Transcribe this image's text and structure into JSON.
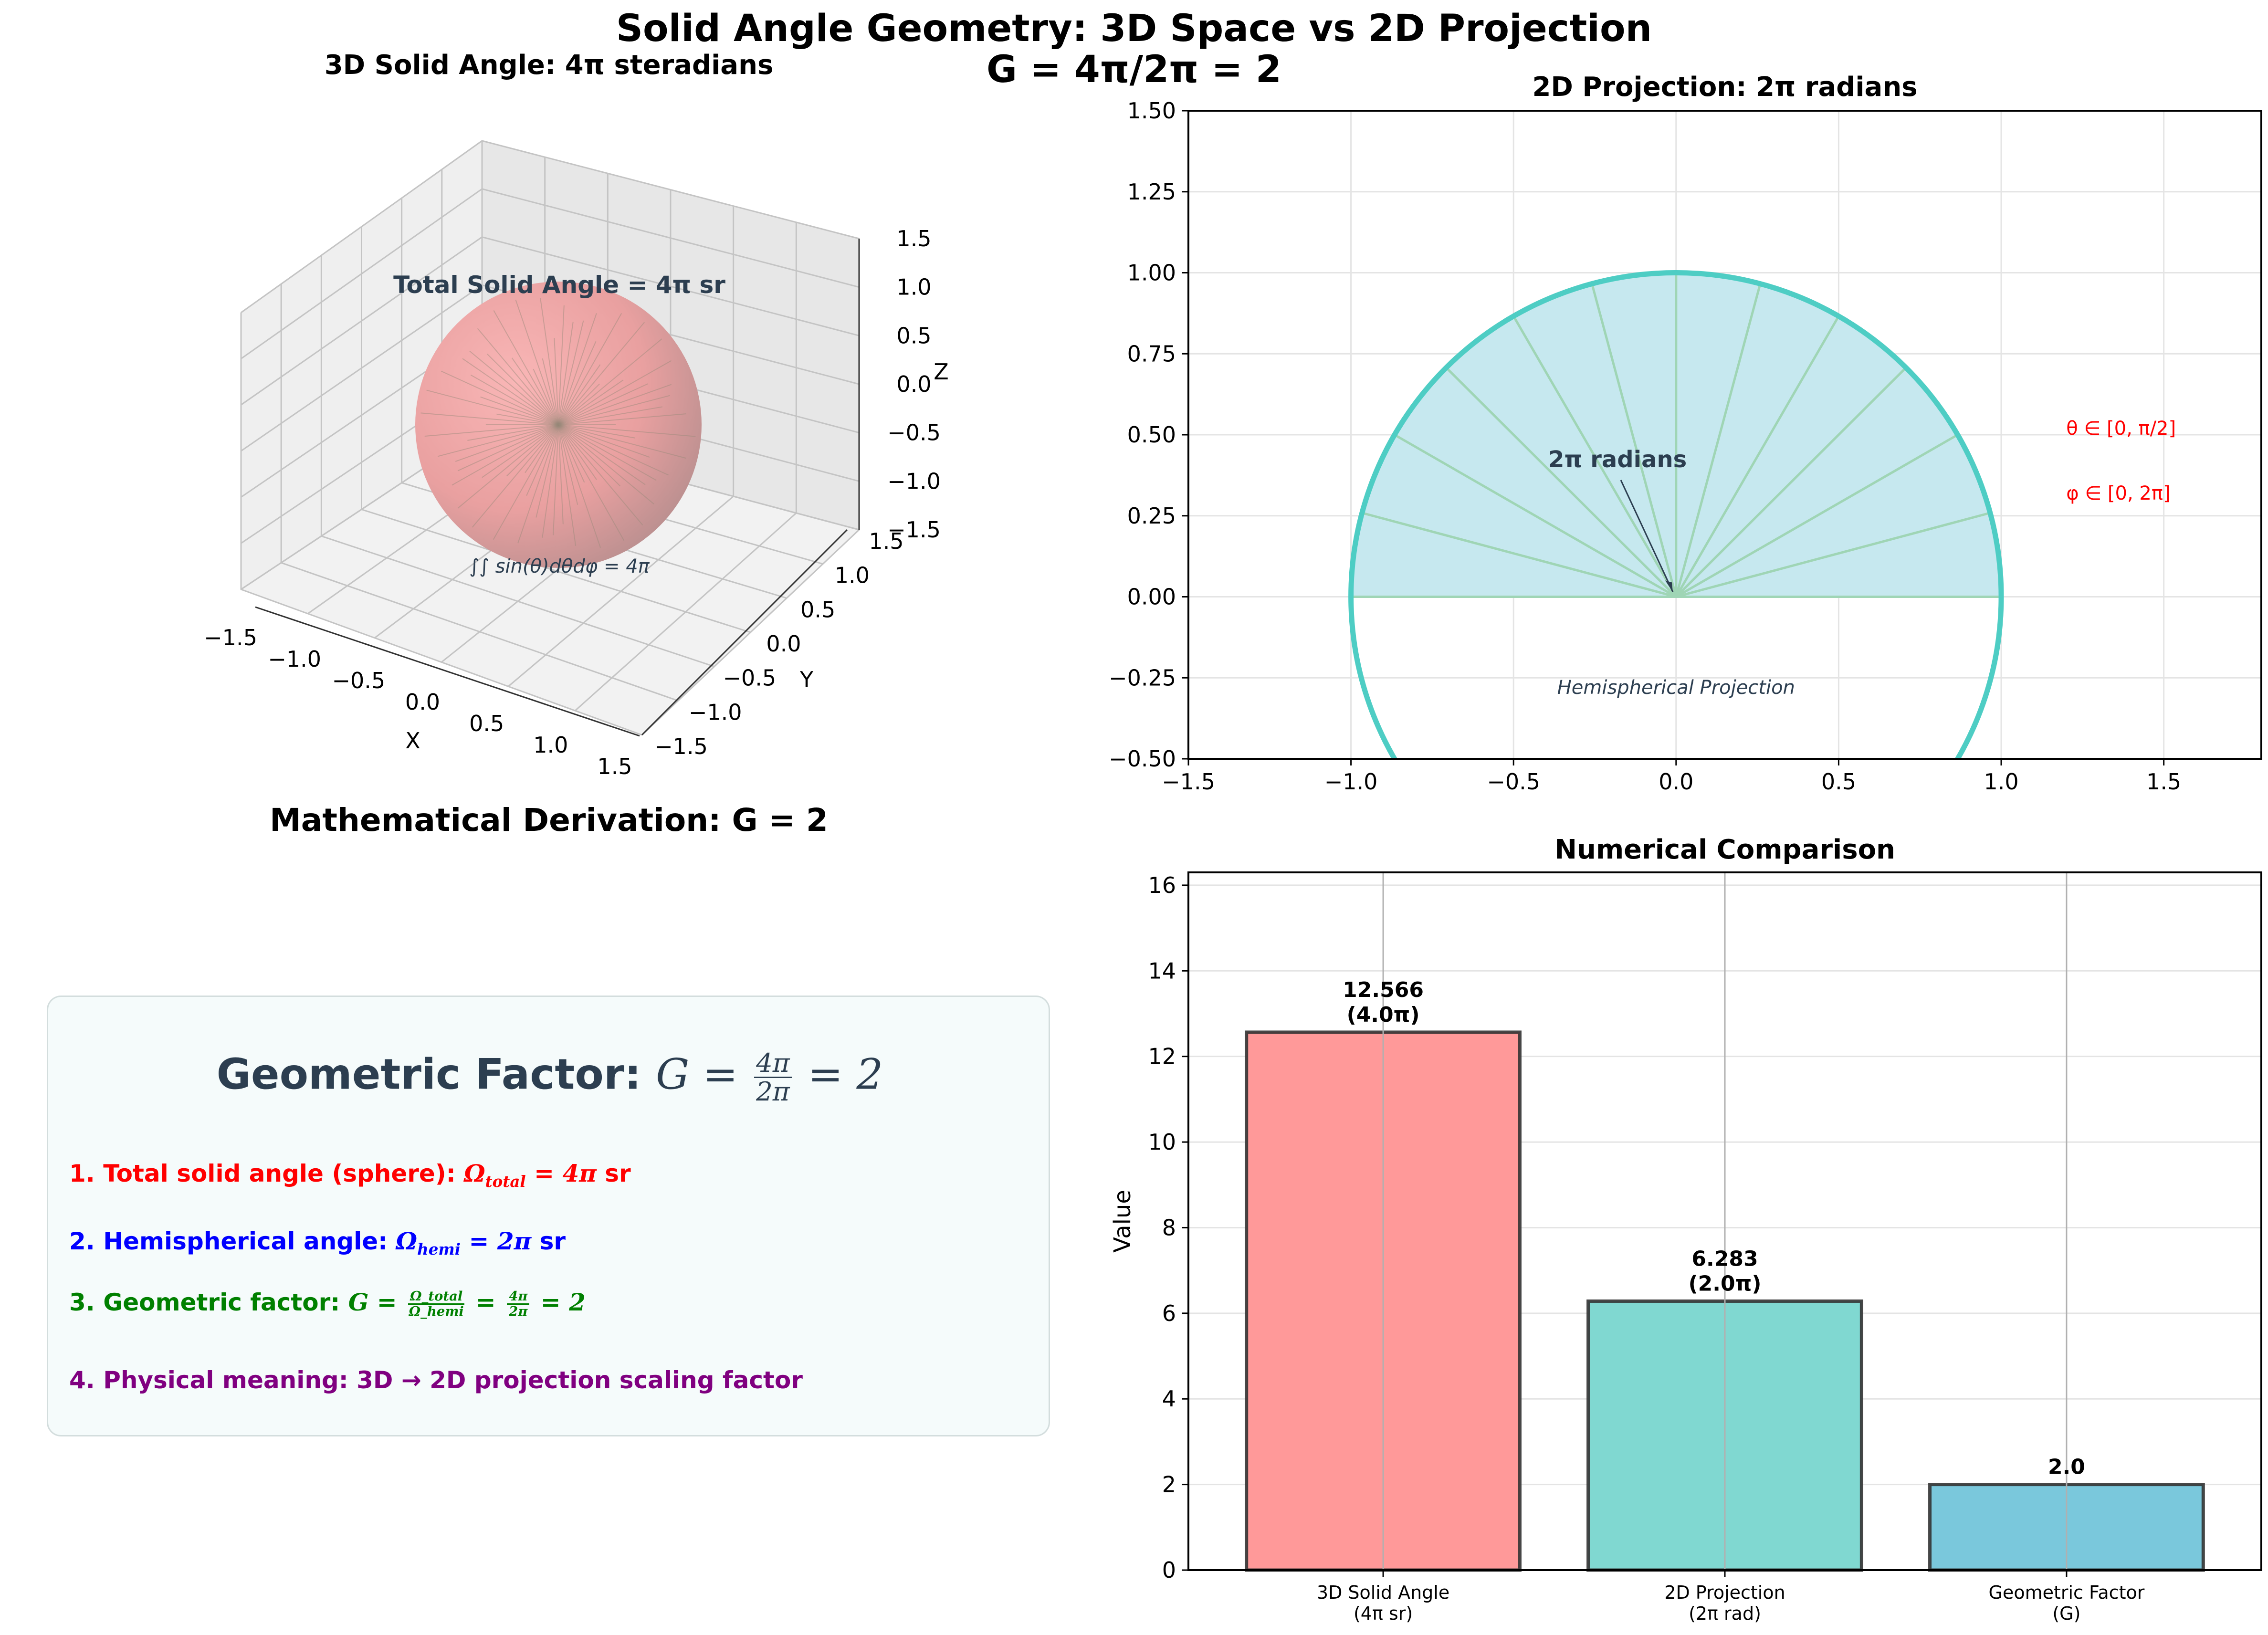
{
  "figure": {
    "title_line1": "Solid Angle Geometry: 3D Space vs 2D Projection",
    "title_line2": "G = 4π/2π = 2"
  },
  "panel_3d": {
    "title": "3D Solid Angle: 4π steradians",
    "annotation_top": "Total Solid Angle = 4π sr",
    "annotation_bottom": "∫∫ sin(θ)dθdφ = 4π",
    "xlabel": "X",
    "ylabel": "Y",
    "zlabel": "Z",
    "ticks": [
      "−1.5",
      "−1.0",
      "−0.5",
      "0.0",
      "0.5",
      "1.0",
      "1.5"
    ],
    "sphere_color": "#f4a6a6"
  },
  "panel_2d": {
    "title": "2D Projection: 2π radians",
    "xlim": [
      -1.5,
      1.8
    ],
    "ylim": [
      -0.5,
      1.5
    ],
    "xticks": [
      -1.5,
      -1.0,
      -0.5,
      0.0,
      0.5,
      1.0,
      1.5
    ],
    "yticks": [
      -0.5,
      -0.25,
      0.0,
      0.25,
      0.5,
      0.75,
      1.0,
      1.25,
      1.5
    ],
    "xtick_labels": [
      "−1.5",
      "−1.0",
      "−0.5",
      "0.0",
      "0.5",
      "1.0",
      "1.5"
    ],
    "ytick_labels": [
      "−0.50",
      "−0.25",
      "0.00",
      "0.25",
      "0.50",
      "0.75",
      "1.00",
      "1.25",
      "1.50"
    ],
    "radius": 1.0,
    "ray_count": 12,
    "annotation_radians": "2π radians",
    "annotation_projection": "Hemispherical Projection",
    "label_theta": "θ ∈ [0, π/2]",
    "label_phi": "φ ∈ [0, 2π]",
    "circle_color": "#4ecdc4",
    "fill_color": "#c6e8ef",
    "ray_color": "#9fd5b5",
    "label_color": "#ff0000",
    "grid": true
  },
  "derivation": {
    "title": "Mathematical Derivation: G = 2",
    "box_heading": "Geometric Factor: ",
    "box_heading_math": "G = ",
    "box_heading_num": "4π",
    "box_heading_den": "2π",
    "box_heading_tail": " = 2",
    "step1_text": "1. Total solid angle (sphere): ",
    "step1_math": "Ω",
    "step1_sub": "total",
    "step1_math_tail": " = 4π",
    "step1_unit": " sr",
    "step2_text": "2. Hemispherical angle: ",
    "step2_math": "Ω",
    "step2_sub": "hemi",
    "step2_math_tail": " = 2π",
    "step2_unit": " sr",
    "step3_text": "3. Geometric factor: ",
    "step3_math_g": "G = ",
    "step3_num1": "Ω_total",
    "step3_den1": "Ω_hemi",
    "step3_eq": " = ",
    "step3_num2": "4π",
    "step3_den2": "2π",
    "step3_tail": " = 2",
    "step4_text": "4. Physical meaning: 3D → 2D projection scaling factor",
    "colors": {
      "step1": "#ff0000",
      "step2": "#0000ff",
      "step3": "#008000",
      "step4": "#800080",
      "heading": "#2c3e50"
    }
  },
  "chart_data": {
    "type": "bar",
    "title": "Numerical Comparison",
    "ylabel": "Value",
    "categories": [
      "3D Solid Angle\n(4π sr)",
      "2D Projection\n(2π rad)",
      "Geometric Factor\n(G)"
    ],
    "category_line1": [
      "3D Solid Angle",
      "2D Projection",
      "Geometric Factor"
    ],
    "category_line2": [
      "(4π sr)",
      "(2π rad)",
      "(G)"
    ],
    "values": [
      12.566,
      6.283,
      2.0
    ],
    "value_labels_line1": [
      "12.566",
      "6.283",
      "2.0"
    ],
    "value_labels_line2": [
      "(4.0π)",
      "(2.0π)",
      ""
    ],
    "colors": [
      "#ff9999",
      "#80d8d1",
      "#7ac8dc"
    ],
    "ylim": [
      0,
      16.3
    ],
    "yticks": [
      0,
      2,
      4,
      6,
      8,
      10,
      12,
      14,
      16
    ],
    "ytick_labels": [
      "0",
      "2",
      "4",
      "6",
      "8",
      "10",
      "12",
      "14",
      "16"
    ],
    "grid": true
  }
}
